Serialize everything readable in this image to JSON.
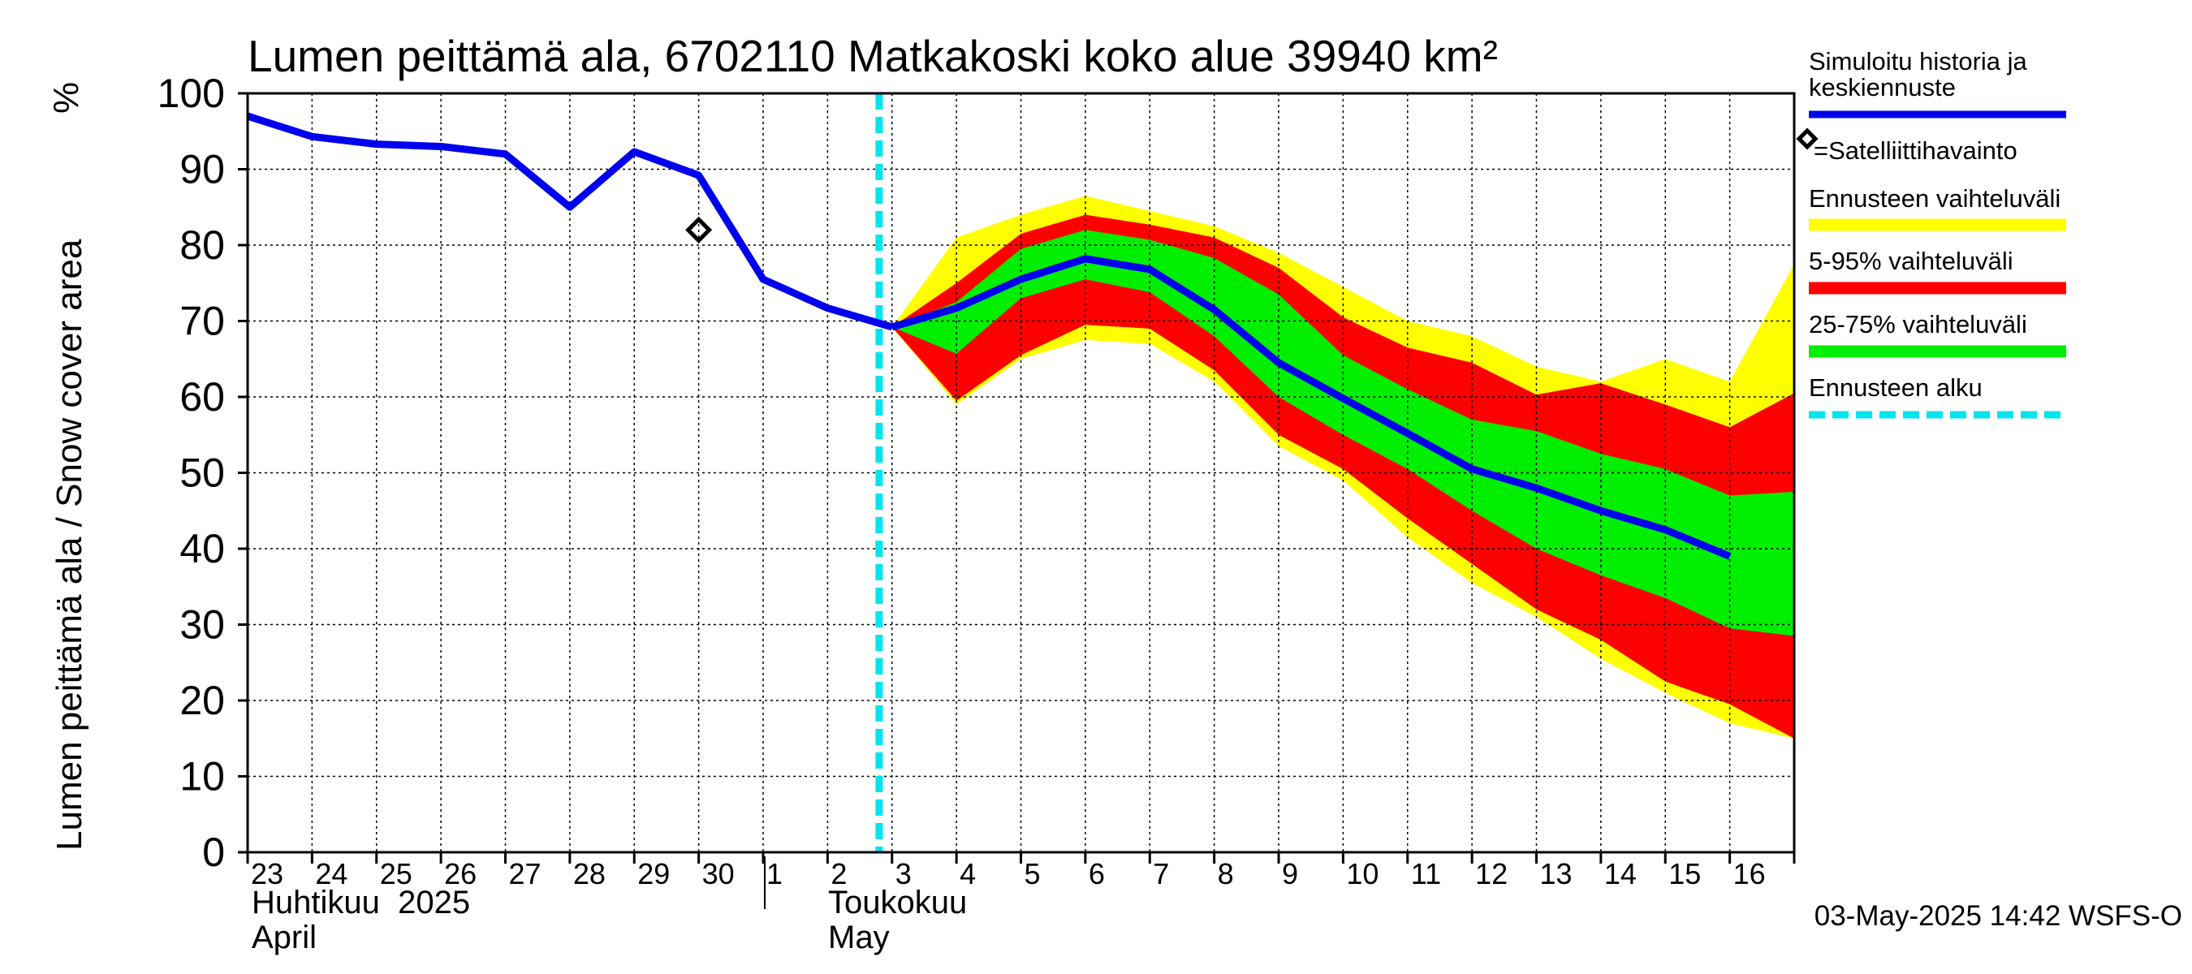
{
  "chart_data": {
    "type": "area",
    "title": "Lumen peittämä ala, 6702110 Matkakoski koko alue 39940 km²",
    "ylabel": "Lumen peittämä ala / Snow cover area",
    "yunit": "%",
    "ylim": [
      0,
      100
    ],
    "yticks": [
      0,
      10,
      20,
      30,
      40,
      50,
      60,
      70,
      80,
      90,
      100
    ],
    "x_days": [
      "23",
      "24",
      "25",
      "26",
      "27",
      "28",
      "29",
      "30",
      "1",
      "2",
      "3",
      "4",
      "5",
      "6",
      "7",
      "8",
      "9",
      "10",
      "11",
      "12",
      "13",
      "14",
      "15",
      "16"
    ],
    "month_labels": [
      {
        "fi": "Huhtikuu  2025",
        "en": "April"
      },
      {
        "fi": "Toukokuu",
        "en": "May"
      }
    ],
    "forecast_start_day_index": 9.8,
    "grid": true,
    "history_series": {
      "name": "Simuloitu historia ja keskiennuste",
      "color": "#0000ee",
      "x": [
        0,
        1,
        2,
        3,
        4,
        5,
        6,
        7,
        8,
        9,
        10
      ],
      "values": [
        97,
        94.3,
        93.3,
        93,
        92,
        85,
        92.3,
        89.2,
        75.5,
        71.7,
        69.2
      ]
    },
    "median_forecast": {
      "color": "#0000ee",
      "x": [
        10,
        11,
        12,
        13,
        14,
        15,
        16,
        17,
        18,
        19,
        20,
        21,
        22,
        23
      ],
      "values": [
        69.2,
        71.7,
        75.5,
        78.2,
        76.8,
        71.5,
        64.5,
        59.8,
        55.2,
        50.5,
        48,
        45,
        42.5,
        39
      ]
    },
    "band_x": [
      10,
      11,
      12,
      13,
      14,
      15,
      16,
      17,
      18,
      19,
      20,
      21,
      22,
      23,
      24
    ],
    "bands": [
      {
        "name": "Ennusteen vaihteluväli",
        "color": "#ffff00",
        "upper": [
          69.2,
          81,
          84,
          86.5,
          84.5,
          82.5,
          79,
          74.5,
          70,
          68,
          64,
          62,
          65,
          62,
          77.5
        ],
        "lower": [
          69.2,
          59,
          65,
          67.5,
          67,
          62,
          53.5,
          49,
          41.5,
          35.5,
          31,
          25.5,
          21,
          17,
          15
        ]
      },
      {
        "name": "5-95% vaihteluväli",
        "color": "#ff0000",
        "upper": [
          69.2,
          75,
          81.5,
          84,
          82.7,
          81,
          77,
          70.5,
          66.5,
          64.5,
          60.3,
          61.8,
          59,
          56,
          60.5
        ],
        "lower": [
          69.2,
          59.5,
          65.5,
          69.5,
          69,
          63.5,
          55,
          50.5,
          44,
          38,
          32,
          28,
          22.5,
          19.5,
          15
        ]
      },
      {
        "name": "25-75% vaihteluväli",
        "color": "#00ee00",
        "upper": [
          69.2,
          72.5,
          79.5,
          82,
          80.7,
          78.3,
          73.5,
          65.5,
          61,
          57,
          55.5,
          52.5,
          50.5,
          47,
          47.5
        ],
        "lower": [
          69.2,
          65.7,
          73,
          75.5,
          73.8,
          68,
          60,
          55,
          50.5,
          45,
          40,
          36.5,
          33.5,
          29.5,
          28.5
        ]
      }
    ],
    "satellite_observations": [
      {
        "x": 7,
        "value": 82
      }
    ]
  },
  "legend": {
    "sim_line1": "Simuloitu historia ja",
    "sim_line2": "keskiennuste",
    "satellite": "=Satelliittihavainto",
    "range": "Ennusteen vaihteluväli",
    "p5_95": "5-95% vaihteluväli",
    "p25_75": "25-75% vaihteluväli",
    "forecast_start": "Ennusteen alku"
  },
  "colors": {
    "forecast_start_line": "#00e5ee"
  },
  "footer": {
    "timestamp": "03-May-2025 14:42 WSFS-O"
  }
}
